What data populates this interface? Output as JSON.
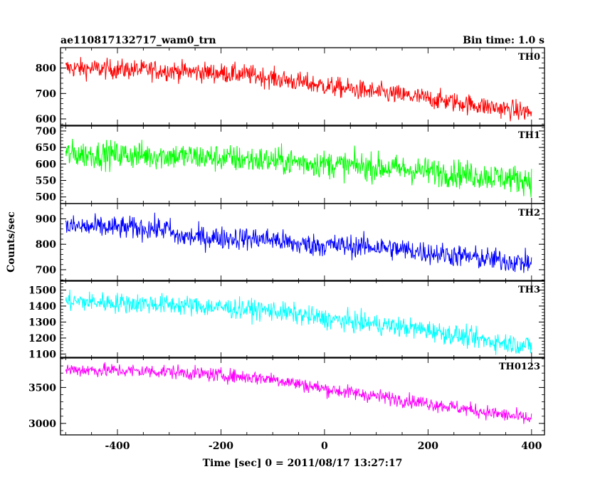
{
  "header": {
    "left": "ae110817132717_wam0_trn",
    "right": "Bin time: 1.0 s"
  },
  "chart_data": {
    "type": "line",
    "xlabel": "Time [sec] 0 = 2011/08/17 13:27:17",
    "ylabel": "Counts/sec",
    "xlim": [
      -510,
      425
    ],
    "xticks": [
      -400,
      -200,
      0,
      200,
      400
    ],
    "panels": [
      {
        "name": "TH0",
        "color": "#ff0000",
        "ylim": [
          575,
          880
        ],
        "yticks": [
          600,
          700,
          800
        ],
        "trend": [
          [
            -500,
            800
          ],
          [
            -300,
            790
          ],
          [
            -150,
            775
          ],
          [
            0,
            730
          ],
          [
            200,
            680
          ],
          [
            400,
            625
          ]
        ],
        "noise": 28
      },
      {
        "name": "TH1",
        "color": "#00ff00",
        "ylim": [
          480,
          715
        ],
        "yticks": [
          500,
          550,
          600,
          650,
          700
        ],
        "trend": [
          [
            -500,
            630
          ],
          [
            -300,
            625
          ],
          [
            -100,
            610
          ],
          [
            100,
            590
          ],
          [
            300,
            565
          ],
          [
            400,
            550
          ]
        ],
        "noise": 30
      },
      {
        "name": "TH2",
        "color": "#0000ff",
        "ylim": [
          655,
          960
        ],
        "yticks": [
          700,
          800,
          900
        ],
        "trend": [
          [
            -500,
            870
          ],
          [
            -300,
            860
          ],
          [
            -290,
            830
          ],
          [
            -100,
            820
          ],
          [
            -60,
            800
          ],
          [
            100,
            790
          ],
          [
            300,
            745
          ],
          [
            400,
            725
          ]
        ],
        "noise": 32
      },
      {
        "name": "TH3",
        "color": "#00ffff",
        "ylim": [
          1075,
          1560
        ],
        "yticks": [
          1100,
          1200,
          1300,
          1400,
          1500
        ],
        "trend": [
          [
            -500,
            1430
          ],
          [
            -300,
            1410
          ],
          [
            -100,
            1370
          ],
          [
            0,
            1320
          ],
          [
            200,
            1250
          ],
          [
            300,
            1190
          ],
          [
            400,
            1150
          ]
        ],
        "noise": 45
      },
      {
        "name": "TH0123",
        "color": "#ff00ff",
        "ylim": [
          2840,
          3920
        ],
        "yticks": [
          3000,
          3500
        ],
        "trend": [
          [
            -500,
            3750
          ],
          [
            -300,
            3720
          ],
          [
            -100,
            3620
          ],
          [
            0,
            3480
          ],
          [
            200,
            3280
          ],
          [
            400,
            3060
          ]
        ],
        "noise": 70
      }
    ]
  }
}
